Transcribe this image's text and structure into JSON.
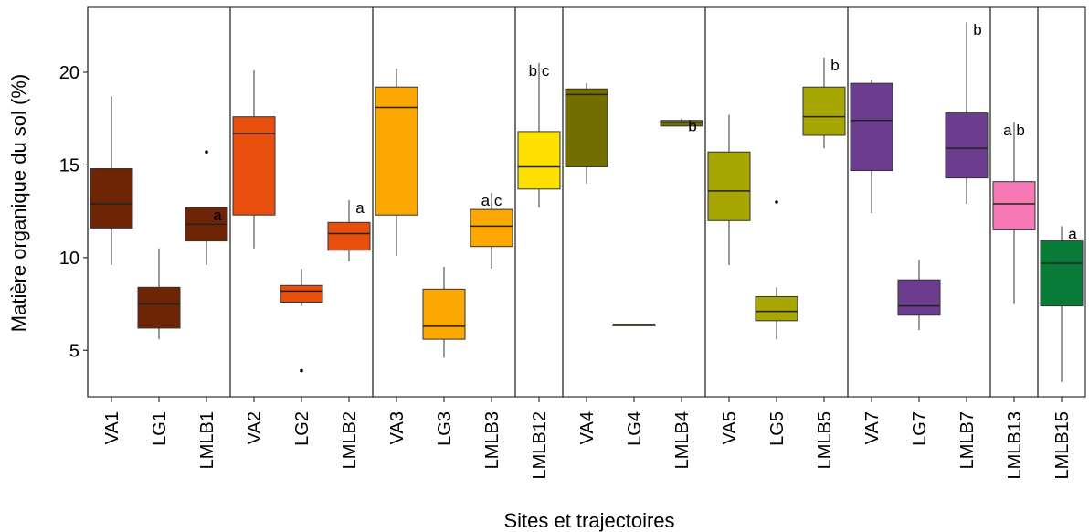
{
  "chart_data": {
    "type": "box",
    "title": "",
    "xlabel": "Sites et trajectoires",
    "ylabel": "Matière organique du sol (%)",
    "ylim": [
      2.5,
      23.5
    ],
    "yticks": [
      5,
      10,
      15,
      20
    ],
    "grid": false,
    "legend": "none",
    "categories": [
      "VA1",
      "LG1",
      "LMLB1",
      "VA2",
      "LG2",
      "LMLB2",
      "VA3",
      "LG3",
      "LMLB3",
      "LMLB12",
      "VA4",
      "LG4",
      "LMLB4",
      "VA5",
      "LG5",
      "LMLB5",
      "VA7",
      "LG7",
      "LMLB7",
      "LMLB13",
      "LMLB15"
    ],
    "groups": [
      {
        "categories": [
          "VA1",
          "LG1",
          "LMLB1"
        ]
      },
      {
        "categories": [
          "VA2",
          "LG2",
          "LMLB2"
        ]
      },
      {
        "categories": [
          "VA3",
          "LG3",
          "LMLB3"
        ]
      },
      {
        "categories": [
          "LMLB12"
        ]
      },
      {
        "categories": [
          "VA4",
          "LG4",
          "LMLB4"
        ]
      },
      {
        "categories": [
          "VA5",
          "LG5",
          "LMLB5"
        ]
      },
      {
        "categories": [
          "VA7",
          "LG7",
          "LMLB7"
        ]
      },
      {
        "categories": [
          "LMLB13"
        ]
      },
      {
        "categories": [
          "LMLB15"
        ]
      }
    ],
    "boxes": [
      {
        "category": "VA1",
        "whisker_low": 9.6,
        "q1": 11.6,
        "median": 12.9,
        "q3": 14.8,
        "whisker_high": 18.7,
        "outliers": [],
        "color": "#6e2506",
        "significance": ""
      },
      {
        "category": "LG1",
        "whisker_low": 5.6,
        "q1": 6.2,
        "median": 7.5,
        "q3": 8.4,
        "whisker_high": 10.5,
        "outliers": [],
        "color": "#6e2506",
        "significance": ""
      },
      {
        "category": "LMLB1",
        "whisker_low": 9.6,
        "q1": 10.9,
        "median": 11.8,
        "q3": 12.7,
        "whisker_high": 12.7,
        "outliers": [
          15.7
        ],
        "color": "#6e2506",
        "significance": "a"
      },
      {
        "category": "VA2",
        "whisker_low": 10.5,
        "q1": 12.3,
        "median": 16.7,
        "q3": 17.6,
        "whisker_high": 20.1,
        "outliers": [],
        "color": "#e84f0d",
        "significance": ""
      },
      {
        "category": "LG2",
        "whisker_low": 7.4,
        "q1": 7.6,
        "median": 8.2,
        "q3": 8.5,
        "whisker_high": 9.4,
        "outliers": [
          3.9
        ],
        "color": "#e84f0d",
        "significance": ""
      },
      {
        "category": "LMLB2",
        "whisker_low": 9.8,
        "q1": 10.4,
        "median": 11.3,
        "q3": 11.9,
        "whisker_high": 13.1,
        "outliers": [],
        "color": "#e84f0d",
        "significance": "a"
      },
      {
        "category": "VA3",
        "whisker_low": 10.1,
        "q1": 12.3,
        "median": 18.1,
        "q3": 19.2,
        "whisker_high": 20.2,
        "outliers": [],
        "color": "#fda800",
        "significance": ""
      },
      {
        "category": "LG3",
        "whisker_low": 4.6,
        "q1": 5.6,
        "median": 6.3,
        "q3": 8.3,
        "whisker_high": 9.5,
        "outliers": [],
        "color": "#fda800",
        "significance": ""
      },
      {
        "category": "LMLB3",
        "whisker_low": 9.4,
        "q1": 10.6,
        "median": 11.7,
        "q3": 12.6,
        "whisker_high": 13.5,
        "outliers": [],
        "color": "#fda800",
        "significance": "a c"
      },
      {
        "category": "LMLB12",
        "whisker_low": 12.7,
        "q1": 13.7,
        "median": 14.9,
        "q3": 16.8,
        "whisker_high": 20.5,
        "outliers": [],
        "color": "#fde000",
        "significance": "b c"
      },
      {
        "category": "VA4",
        "whisker_low": 14.0,
        "q1": 14.9,
        "median": 18.8,
        "q3": 19.1,
        "whisker_high": 19.4,
        "outliers": [],
        "color": "#736e00",
        "significance": ""
      },
      {
        "category": "LG4",
        "whisker_low": 6.4,
        "q1": 6.4,
        "median": 6.4,
        "q3": 6.4,
        "whisker_high": 6.4,
        "outliers": [],
        "color": "#736e00",
        "significance": ""
      },
      {
        "category": "LMLB4",
        "whisker_low": 17.1,
        "q1": 17.1,
        "median": 17.3,
        "q3": 17.4,
        "whisker_high": 17.5,
        "outliers": [],
        "color": "#736e00",
        "significance": "b"
      },
      {
        "category": "VA5",
        "whisker_low": 9.6,
        "q1": 12.0,
        "median": 13.6,
        "q3": 15.7,
        "whisker_high": 17.7,
        "outliers": [],
        "color": "#a8a600",
        "significance": ""
      },
      {
        "category": "LG5",
        "whisker_low": 5.6,
        "q1": 6.6,
        "median": 7.1,
        "q3": 7.9,
        "whisker_high": 8.4,
        "outliers": [
          13.0
        ],
        "color": "#a8a600",
        "significance": ""
      },
      {
        "category": "LMLB5",
        "whisker_low": 15.9,
        "q1": 16.6,
        "median": 17.6,
        "q3": 19.2,
        "whisker_high": 20.8,
        "outliers": [],
        "color": "#a8a600",
        "significance": "b"
      },
      {
        "category": "VA7",
        "whisker_low": 12.4,
        "q1": 14.7,
        "median": 17.4,
        "q3": 19.4,
        "whisker_high": 19.6,
        "outliers": [],
        "color": "#6c3d8e",
        "significance": ""
      },
      {
        "category": "LG7",
        "whisker_low": 6.1,
        "q1": 6.9,
        "median": 7.4,
        "q3": 8.8,
        "whisker_high": 9.9,
        "outliers": [],
        "color": "#6c3d8e",
        "significance": ""
      },
      {
        "category": "LMLB7",
        "whisker_low": 12.9,
        "q1": 14.3,
        "median": 15.9,
        "q3": 17.8,
        "whisker_high": 22.7,
        "outliers": [],
        "color": "#6c3d8e",
        "significance": "b"
      },
      {
        "category": "LMLB13",
        "whisker_low": 7.5,
        "q1": 11.5,
        "median": 12.9,
        "q3": 14.1,
        "whisker_high": 17.3,
        "outliers": [],
        "color": "#f679b6",
        "significance": "a b"
      },
      {
        "category": "LMLB15",
        "whisker_low": 3.3,
        "q1": 7.4,
        "median": 9.7,
        "q3": 10.9,
        "whisker_high": 11.7,
        "outliers": [],
        "color": "#087b38",
        "significance": "a"
      }
    ]
  }
}
